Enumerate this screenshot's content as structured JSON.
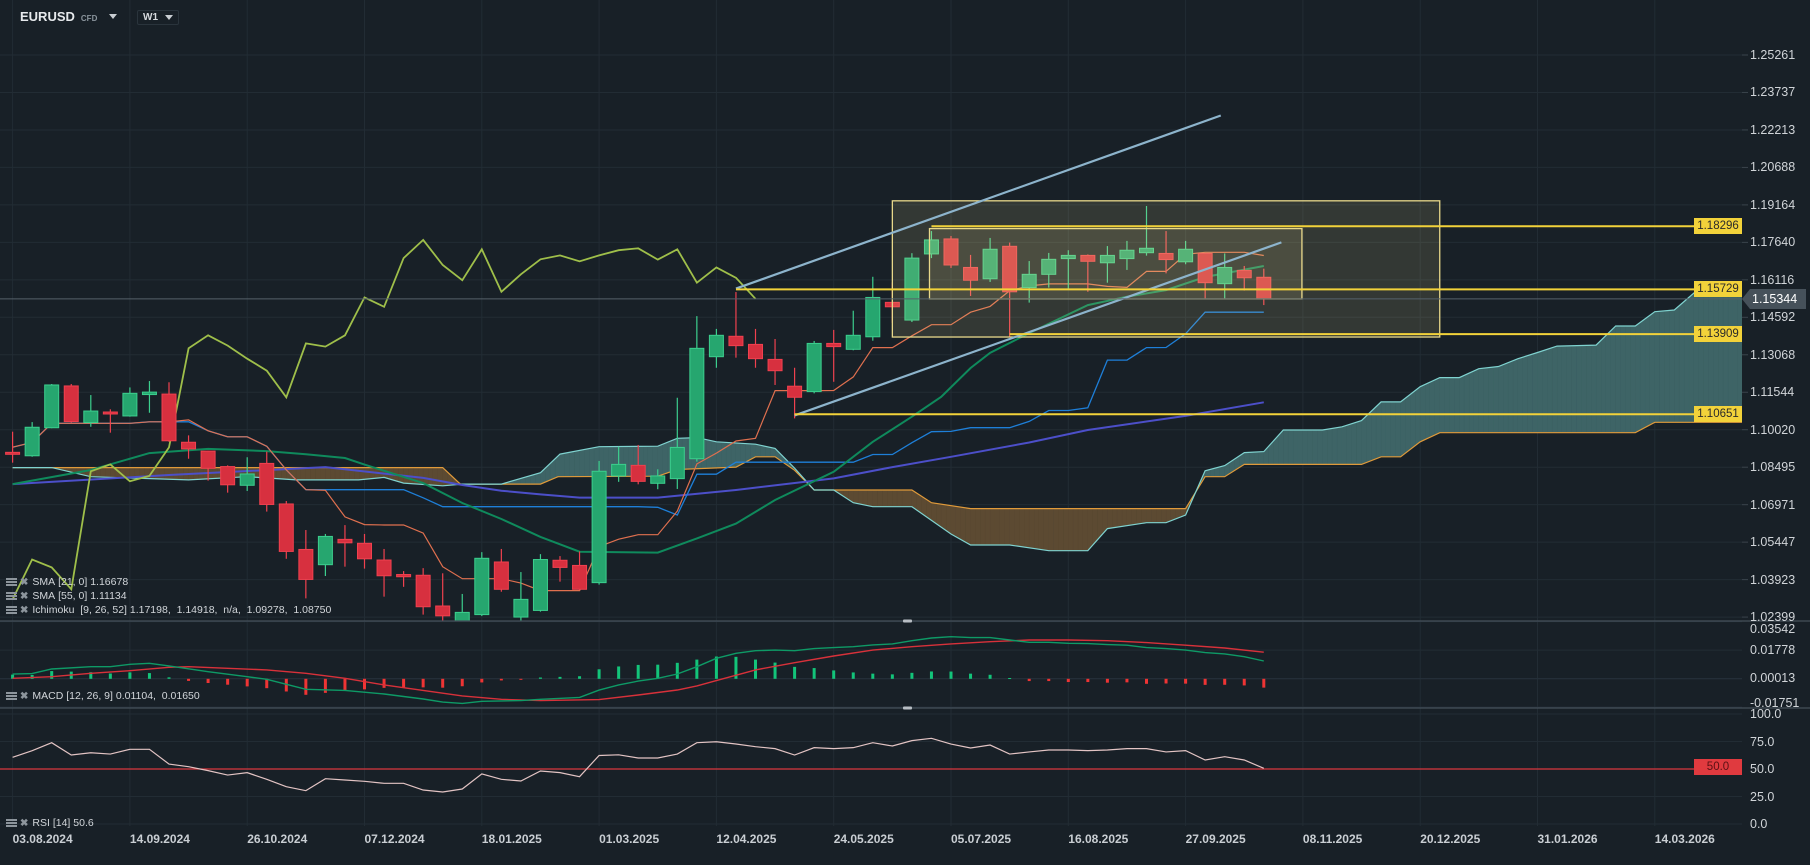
{
  "header": {
    "symbol": "EURUSD",
    "instrument_type": "CFD",
    "timeframe": "W1"
  },
  "legends": {
    "sma21": {
      "name": "SMA",
      "params": "[21, 0]",
      "value": "1.16678"
    },
    "sma55": {
      "name": "SMA",
      "params": "[55, 0]",
      "value": "1.11134"
    },
    "ichimoku": {
      "name": "Ichimoku",
      "params": "[9, 26, 52]",
      "values": "1.17198,  1.14918,  n/a,  1.09278,  1.08750"
    },
    "macd": {
      "name": "MACD",
      "params": "[12, 26, 9]",
      "values": "0.01104,  0.01650"
    },
    "rsi": {
      "name": "RSI",
      "params": "[14]",
      "value": "50.6"
    }
  },
  "colors": {
    "bull": "#26a66f",
    "bear": "#d7303f",
    "sma21": "#0f8a5c",
    "sma55": "#4c4fc9",
    "tenkan": "#e0704f",
    "kijun": "#1e7fd8",
    "chikou": "#9fbf4a",
    "spanA": "#7fd3d0",
    "spanB": "#e09a3a",
    "drawing": "#f2d23a",
    "trend": "#8db4cc"
  },
  "chart_data": {
    "type": "candlestick",
    "interval": "W1",
    "x_tick_labels": [
      "03.08.2024",
      "14.09.2024",
      "26.10.2024",
      "07.12.2024",
      "18.01.2025",
      "01.03.2025",
      "12.04.2025",
      "24.05.2025",
      "05.07.2025",
      "16.08.2025",
      "27.09.2025",
      "08.11.2025",
      "20.12.2025",
      "31.01.2026",
      "14.03.2026"
    ],
    "weeks_per_tick": 6,
    "price_tick_labels": [
      "1.25261",
      "1.23737",
      "1.22213",
      "1.20688",
      "1.19164",
      "1.17640",
      "1.16116",
      "1.14592",
      "1.13068",
      "1.11544",
      "1.10020",
      "1.08495",
      "1.06971",
      "1.05447",
      "1.03923",
      "1.02399"
    ],
    "ylim": [
      1.02399,
      1.25261
    ],
    "current_price": "1.15344",
    "candles_ohlc": [
      [
        1.091,
        1.0994,
        1.0868,
        1.0902
      ],
      [
        1.0896,
        1.1033,
        1.0892,
        1.1012
      ],
      [
        1.101,
        1.1188,
        1.1008,
        1.1184
      ],
      [
        1.118,
        1.1188,
        1.1031,
        1.1035
      ],
      [
        1.1031,
        1.1143,
        1.1014,
        1.1078
      ],
      [
        1.1074,
        1.1085,
        1.099,
        1.1066
      ],
      [
        1.1058,
        1.1174,
        1.1055,
        1.115
      ],
      [
        1.1145,
        1.12,
        1.1071,
        1.1155
      ],
      [
        1.1147,
        1.1195,
        1.0953,
        1.0957
      ],
      [
        1.0951,
        1.0979,
        1.0884,
        1.0924
      ],
      [
        1.0915,
        1.0916,
        1.0795,
        1.0845
      ],
      [
        1.0852,
        1.0857,
        1.0746,
        1.0778
      ],
      [
        1.0776,
        1.089,
        1.0753,
        1.0822
      ],
      [
        1.0865,
        1.0913,
        1.0669,
        1.0698
      ],
      [
        1.07,
        1.0712,
        1.0477,
        1.0507
      ],
      [
        1.0515,
        1.0594,
        1.0316,
        1.0393
      ],
      [
        1.0453,
        1.0578,
        1.0407,
        1.0568
      ],
      [
        1.0556,
        1.0614,
        1.0445,
        1.0542
      ],
      [
        1.054,
        1.0578,
        1.0437,
        1.0477
      ],
      [
        1.0472,
        1.0517,
        1.0323,
        1.0408
      ],
      [
        1.0413,
        1.0427,
        1.0363,
        1.0404
      ],
      [
        1.041,
        1.0439,
        1.025,
        1.0282
      ],
      [
        1.0285,
        1.0418,
        1.0178,
        1.0245
      ],
      [
        1.021,
        1.0334,
        1.018,
        1.0259
      ],
      [
        1.025,
        1.0504,
        1.0244,
        1.0479
      ],
      [
        1.0464,
        1.0517,
        1.0343,
        1.0353
      ],
      [
        1.024,
        1.0423,
        1.021,
        1.0312
      ],
      [
        1.0267,
        1.0496,
        1.0262,
        1.0474
      ],
      [
        1.0471,
        1.0488,
        1.0384,
        1.0442
      ],
      [
        1.045,
        1.0507,
        1.035,
        1.0353
      ],
      [
        1.038,
        1.0875,
        1.0372,
        1.0833
      ],
      [
        1.0814,
        1.0933,
        1.079,
        1.0861
      ],
      [
        1.0857,
        1.094,
        1.078,
        1.0792
      ],
      [
        1.0784,
        1.0841,
        1.076,
        1.0814
      ],
      [
        1.0803,
        1.1132,
        1.0761,
        1.093
      ],
      [
        1.0884,
        1.1464,
        1.0872,
        1.1333
      ],
      [
        1.1299,
        1.1412,
        1.1254,
        1.1386
      ],
      [
        1.1382,
        1.1562,
        1.1295,
        1.1344
      ],
      [
        1.1349,
        1.1412,
        1.1254,
        1.1291
      ],
      [
        1.1288,
        1.1371,
        1.1184,
        1.1242
      ],
      [
        1.1179,
        1.1254,
        1.1048,
        1.1134
      ],
      [
        1.1157,
        1.1363,
        1.115,
        1.1353
      ],
      [
        1.1353,
        1.1408,
        1.1197,
        1.134
      ],
      [
        1.1329,
        1.1486,
        1.1325,
        1.1386
      ],
      [
        1.138,
        1.1624,
        1.1364,
        1.154
      ],
      [
        1.152,
        1.1601,
        1.1437,
        1.1502
      ],
      [
        1.1448,
        1.172,
        1.144,
        1.17
      ],
      [
        1.1717,
        1.181,
        1.17,
        1.1774
      ],
      [
        1.1778,
        1.179,
        1.166,
        1.1672
      ],
      [
        1.1662,
        1.1713,
        1.1546,
        1.161
      ],
      [
        1.1616,
        1.1782,
        1.1603,
        1.1736
      ],
      [
        1.1748,
        1.1763,
        1.138,
        1.1563
      ],
      [
        1.158,
        1.1688,
        1.1519,
        1.1634
      ],
      [
        1.1634,
        1.1721,
        1.158,
        1.1695
      ],
      [
        1.1698,
        1.1732,
        1.1576,
        1.1711
      ],
      [
        1.1711,
        1.1715,
        1.1563,
        1.1687
      ],
      [
        1.1681,
        1.1749,
        1.16,
        1.1711
      ],
      [
        1.1698,
        1.177,
        1.1652,
        1.1732
      ],
      [
        1.1722,
        1.1912,
        1.171,
        1.174
      ],
      [
        1.1719,
        1.181,
        1.1638,
        1.1694
      ],
      [
        1.1685,
        1.177,
        1.1675,
        1.1736
      ],
      [
        1.1719,
        1.1719,
        1.1535,
        1.16
      ],
      [
        1.1596,
        1.1719,
        1.1535,
        1.1662
      ],
      [
        1.165,
        1.1668,
        1.1568,
        1.162
      ],
      [
        1.1622,
        1.1657,
        1.1509,
        1.15344
      ]
    ],
    "sma21_points": [
      [
        0,
        1.0781
      ],
      [
        4,
        1.0838
      ],
      [
        7,
        1.0907
      ],
      [
        10,
        1.0924
      ],
      [
        13,
        1.0915
      ],
      [
        15,
        1.0902
      ],
      [
        17,
        1.0887
      ],
      [
        18,
        1.086
      ],
      [
        21,
        1.0785
      ],
      [
        23,
        1.0704
      ],
      [
        25,
        1.0639
      ],
      [
        27,
        1.0566
      ],
      [
        29,
        1.0506
      ],
      [
        33,
        1.0502
      ],
      [
        35,
        1.056
      ],
      [
        37,
        1.062
      ],
      [
        39,
        1.0716
      ],
      [
        42,
        1.0831
      ],
      [
        44,
        1.0953
      ],
      [
        46,
        1.1055
      ],
      [
        47.5,
        1.1136
      ],
      [
        49,
        1.1253
      ],
      [
        50,
        1.1315
      ],
      [
        52,
        1.1395
      ],
      [
        55,
        1.1509
      ],
      [
        57,
        1.1543
      ],
      [
        59,
        1.157
      ],
      [
        61,
        1.1623
      ],
      [
        64,
        1.16678
      ]
    ],
    "sma55_points": [
      [
        0,
        1.0781
      ],
      [
        8,
        1.0818
      ],
      [
        16,
        1.085
      ],
      [
        21,
        1.0806
      ],
      [
        23,
        1.0777
      ],
      [
        25,
        1.0754
      ],
      [
        27,
        1.0739
      ],
      [
        29,
        1.0726
      ],
      [
        33,
        1.0726
      ],
      [
        37,
        1.0757
      ],
      [
        42,
        1.0804
      ],
      [
        45,
        1.085
      ],
      [
        48,
        1.0892
      ],
      [
        52,
        1.095
      ],
      [
        55,
        1.1001
      ],
      [
        60,
        1.1058
      ],
      [
        64,
        1.11134
      ]
    ],
    "span_a_points": [
      [
        0,
        1.0848
      ],
      [
        2,
        1.0848
      ],
      [
        4,
        1.0811
      ],
      [
        9,
        1.0798
      ],
      [
        12,
        1.0811
      ],
      [
        14.5,
        1.0798
      ],
      [
        17.7,
        1.0798
      ],
      [
        19,
        1.0808
      ],
      [
        20,
        1.0785
      ],
      [
        22,
        1.0774
      ],
      [
        23,
        1.0781
      ],
      [
        25,
        1.0781
      ],
      [
        27,
        1.0827
      ],
      [
        28,
        1.0903
      ],
      [
        30,
        1.0933
      ],
      [
        33,
        1.0935
      ],
      [
        34,
        1.0967
      ],
      [
        35,
        1.097
      ],
      [
        36,
        1.0953
      ],
      [
        38,
        1.0943
      ],
      [
        39,
        1.0926
      ],
      [
        40,
        1.0846
      ],
      [
        41,
        1.0757
      ],
      [
        42,
        1.0757
      ],
      [
        43,
        1.0705
      ],
      [
        44,
        1.0689
      ],
      [
        46,
        1.0689
      ],
      [
        48,
        1.0578
      ],
      [
        49,
        1.0533
      ],
      [
        51,
        1.0533
      ],
      [
        53,
        1.051
      ],
      [
        55,
        1.051
      ],
      [
        56,
        1.06
      ],
      [
        58,
        1.0624
      ],
      [
        59,
        1.0624
      ],
      [
        60,
        1.0655
      ],
      [
        61,
        1.0835
      ],
      [
        62,
        1.0856
      ],
      [
        63,
        1.0909
      ],
      [
        64,
        1.0913
      ],
      [
        65,
        1.1001
      ],
      [
        67,
        1.1001
      ],
      [
        68,
        1.1014
      ],
      [
        69,
        1.1039
      ],
      [
        70,
        1.1115
      ],
      [
        71,
        1.1115
      ],
      [
        72,
        1.1177
      ],
      [
        73,
        1.1214
      ],
      [
        74,
        1.1214
      ],
      [
        75,
        1.125
      ],
      [
        76,
        1.1259
      ],
      [
        77,
        1.1291
      ],
      [
        78,
        1.1316
      ],
      [
        79,
        1.1342
      ],
      [
        81,
        1.1346
      ],
      [
        82,
        1.1424
      ],
      [
        83,
        1.1424
      ],
      [
        84,
        1.1482
      ],
      [
        85,
        1.1489
      ],
      [
        86,
        1.1558
      ],
      [
        87,
        1.1603
      ],
      [
        88.6,
        1.1603
      ]
    ],
    "span_b_points": [
      [
        0,
        1.0848
      ],
      [
        22,
        1.0848
      ],
      [
        22.9,
        1.0781
      ],
      [
        27,
        1.0781
      ],
      [
        27.9,
        1.0811
      ],
      [
        33,
        1.0813
      ],
      [
        34,
        1.084
      ],
      [
        37,
        1.085
      ],
      [
        38,
        1.0892
      ],
      [
        39,
        1.0892
      ],
      [
        40,
        1.0837
      ],
      [
        41,
        1.0757
      ],
      [
        46,
        1.0757
      ],
      [
        47,
        1.0705
      ],
      [
        49,
        1.0681
      ],
      [
        60,
        1.0681
      ],
      [
        61,
        1.0811
      ],
      [
        62,
        1.0811
      ],
      [
        63,
        1.0861
      ],
      [
        69,
        1.0861
      ],
      [
        70,
        1.0892
      ],
      [
        71,
        1.0892
      ],
      [
        72,
        1.0953
      ],
      [
        73,
        1.099
      ],
      [
        83,
        1.099
      ],
      [
        84,
        1.1032
      ],
      [
        88.6,
        1.1032
      ]
    ],
    "horizontal_levels": [
      {
        "label": "1.18296",
        "price": 1.18296,
        "from_week": 47
      },
      {
        "label": "1.15729",
        "price": 1.15729,
        "from_week": 37
      },
      {
        "label": "1.13909",
        "price": 1.13909,
        "from_week": 51
      },
      {
        "label": "1.10651",
        "price": 1.10651,
        "from_week": 40
      }
    ],
    "trend_lines": [
      {
        "from": [
          37,
          1.1576
        ],
        "to": [
          61.8,
          1.228
        ]
      },
      {
        "from": [
          40,
          1.106
        ],
        "to": [
          64.9,
          1.1764
        ]
      }
    ],
    "rectangles": [
      {
        "from": [
          45,
          1.1933
        ],
        "to": [
          73,
          1.1379
        ]
      },
      {
        "from": [
          46.9,
          1.182
        ],
        "to": [
          65.95,
          1.1534
        ]
      }
    ],
    "macd": {
      "tick_labels": [
        "0.03542",
        "0.01778",
        "0.00013",
        "-0.01751"
      ],
      "macd_points": [
        [
          0,
          0.0029
        ],
        [
          1,
          0.0032
        ],
        [
          2,
          0.0061
        ],
        [
          4,
          0.0075
        ],
        [
          5,
          0.0075
        ],
        [
          6,
          0.009
        ],
        [
          7,
          0.0096
        ],
        [
          8,
          0.008
        ],
        [
          10,
          0.0044
        ],
        [
          12,
          0.0013
        ],
        [
          13,
          -0.0003
        ],
        [
          15,
          -0.0065
        ],
        [
          17,
          -0.0072
        ],
        [
          19,
          -0.0094
        ],
        [
          21,
          -0.0125
        ],
        [
          22,
          -0.0144
        ],
        [
          23,
          -0.0152
        ],
        [
          24,
          -0.0139
        ],
        [
          26,
          -0.0135
        ],
        [
          27,
          -0.0127
        ],
        [
          29,
          -0.0115
        ],
        [
          30,
          -0.007
        ],
        [
          31,
          -0.0038
        ],
        [
          32,
          -0.0014
        ],
        [
          33,
          0.0003
        ],
        [
          34,
          0.003
        ],
        [
          35,
          0.0075
        ],
        [
          36,
          0.0127
        ],
        [
          37,
          0.0158
        ],
        [
          38,
          0.0174
        ],
        [
          39,
          0.0178
        ],
        [
          40,
          0.0174
        ],
        [
          41,
          0.0187
        ],
        [
          42,
          0.0193
        ],
        [
          43,
          0.0199
        ],
        [
          44,
          0.021
        ],
        [
          45,
          0.0216
        ],
        [
          46,
          0.0236
        ],
        [
          47,
          0.0253
        ],
        [
          48,
          0.0261
        ],
        [
          49,
          0.0255
        ],
        [
          50,
          0.0255
        ],
        [
          51,
          0.024
        ],
        [
          52,
          0.0226
        ],
        [
          53,
          0.0226
        ],
        [
          54,
          0.022
        ],
        [
          55,
          0.0218
        ],
        [
          56,
          0.0212
        ],
        [
          57,
          0.0208
        ],
        [
          58,
          0.0193
        ],
        [
          59,
          0.0187
        ],
        [
          60,
          0.0178
        ],
        [
          61,
          0.0162
        ],
        [
          62,
          0.0154
        ],
        [
          63,
          0.0137
        ],
        [
          64,
          0.01104
        ]
      ],
      "signal_points": [
        [
          0,
          0.0003
        ],
        [
          2,
          0.0013
        ],
        [
          4,
          0.0034
        ],
        [
          6,
          0.005
        ],
        [
          8,
          0.0071
        ],
        [
          9,
          0.0075
        ],
        [
          11,
          0.0065
        ],
        [
          13,
          0.0055
        ],
        [
          15,
          0.0034
        ],
        [
          17,
          0.0003
        ],
        [
          19,
          -0.0038
        ],
        [
          21,
          -0.0072
        ],
        [
          23,
          -0.0106
        ],
        [
          25,
          -0.0127
        ],
        [
          27,
          -0.0135
        ],
        [
          30,
          -0.0129
        ],
        [
          32,
          -0.01
        ],
        [
          34,
          -0.0069
        ],
        [
          35,
          -0.0044
        ],
        [
          36,
          -0.0011
        ],
        [
          38,
          0.0055
        ],
        [
          40,
          0.01
        ],
        [
          42,
          0.0141
        ],
        [
          44,
          0.0178
        ],
        [
          46,
          0.0199
        ],
        [
          48,
          0.0216
        ],
        [
          50,
          0.023
        ],
        [
          52,
          0.024
        ],
        [
          54,
          0.024
        ],
        [
          56,
          0.0236
        ],
        [
          58,
          0.0224
        ],
        [
          60,
          0.0208
        ],
        [
          62,
          0.0191
        ],
        [
          64,
          0.0165
        ]
      ]
    },
    "rsi": {
      "tick_labels": [
        "100.0",
        "75.0",
        "50.0",
        "25.0",
        "0.0"
      ],
      "level_label": "50.0",
      "values": [
        60.6,
        66.6,
        73.9,
        62.7,
        64.8,
        63.6,
        67.9,
        67.9,
        54.5,
        52.1,
        48.5,
        44.5,
        46.7,
        40.6,
        33.9,
        30.3,
        41.2,
        40,
        38.8,
        37,
        37,
        30.9,
        29.1,
        31.8,
        45.5,
        40.6,
        39.1,
        48.2,
        46.7,
        43,
        62.3,
        62.9,
        60,
        60,
        63.6,
        73.9,
        74.8,
        72.7,
        70.3,
        68.5,
        62.7,
        69.4,
        68.5,
        69.4,
        73.9,
        70.9,
        75.8,
        77.9,
        72.7,
        69.1,
        71.8,
        63.6,
        65.5,
        67.3,
        67.3,
        66.7,
        67.3,
        68.5,
        68.5,
        65.5,
        66.7,
        58.2,
        61.2,
        58.2,
        50.6
      ]
    }
  }
}
